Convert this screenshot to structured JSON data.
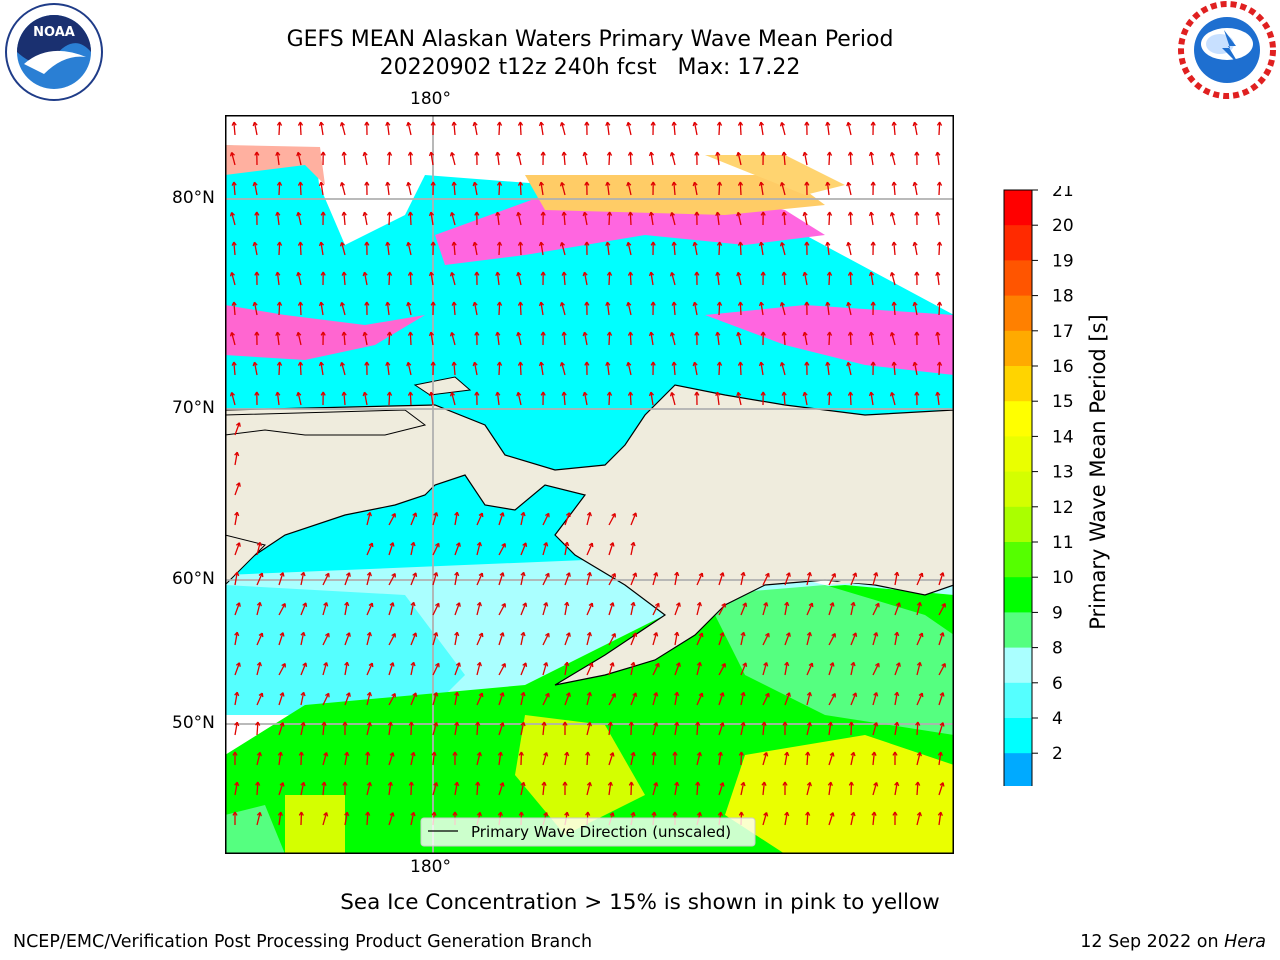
{
  "title": {
    "line1": "GEFS MEAN Alaskan Waters Primary Wave Mean Period",
    "line2": "20220902 t12z 240h fcst   Max: 17.22"
  },
  "logos": {
    "noaa": {
      "icon": "noaa-logo",
      "text": "NOAA"
    },
    "nws": {
      "icon": "national-weather-service-logo"
    }
  },
  "axes": {
    "top_lon": "180°",
    "bottom_lon": "180°",
    "lat_labels": [
      "80°N",
      "70°N",
      "60°N",
      "50°N"
    ]
  },
  "legend": {
    "label": "Primary Wave Direction (unscaled)"
  },
  "colorbar": {
    "label": "Primary Wave Mean Period [s]",
    "ticks": [
      "21",
      "20",
      "19",
      "18",
      "17",
      "16",
      "15",
      "14",
      "13",
      "12",
      "11",
      "10",
      "9",
      "8",
      "6",
      "4",
      "2"
    ],
    "colors": [
      "#ff0000",
      "#ff2a00",
      "#ff5500",
      "#ff8000",
      "#ffaa00",
      "#ffd400",
      "#ffff00",
      "#eaff00",
      "#d4ff00",
      "#aaff00",
      "#55ff00",
      "#00ff00",
      "#55ff80",
      "#aaffff",
      "#55ffff",
      "#00ffff",
      "#00aaff",
      "#0080ff"
    ],
    "under_color": "#0000ff"
  },
  "ice_note": "Sea Ice Concentration > 15% is shown in pink to yellow",
  "footer": {
    "left": "NCEP/EMC/Verification Post Processing Product Generation Branch",
    "right_prefix": "12 Sep 2022 on ",
    "right_machine": "Hera"
  }
}
